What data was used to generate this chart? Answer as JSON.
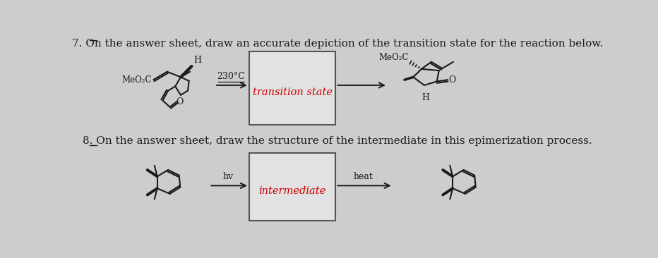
{
  "bg_color": "#cecdcd",
  "text_color": "#1a1a1a",
  "red_color": "#cc0000",
  "title1": "7. On the answer sheet, draw an accurate depiction of the transition state for the reaction below.",
  "title2": "8. On the answer sheet, draw the structure of the intermediate in this epimerization process.",
  "box1_label": "transition state",
  "box2_label": "intermediate",
  "arrow1_label": "230°C",
  "arrow2_label": "hv",
  "arrow3_label": "heat",
  "fig_width": 9.32,
  "fig_height": 3.66,
  "dpi": 100
}
